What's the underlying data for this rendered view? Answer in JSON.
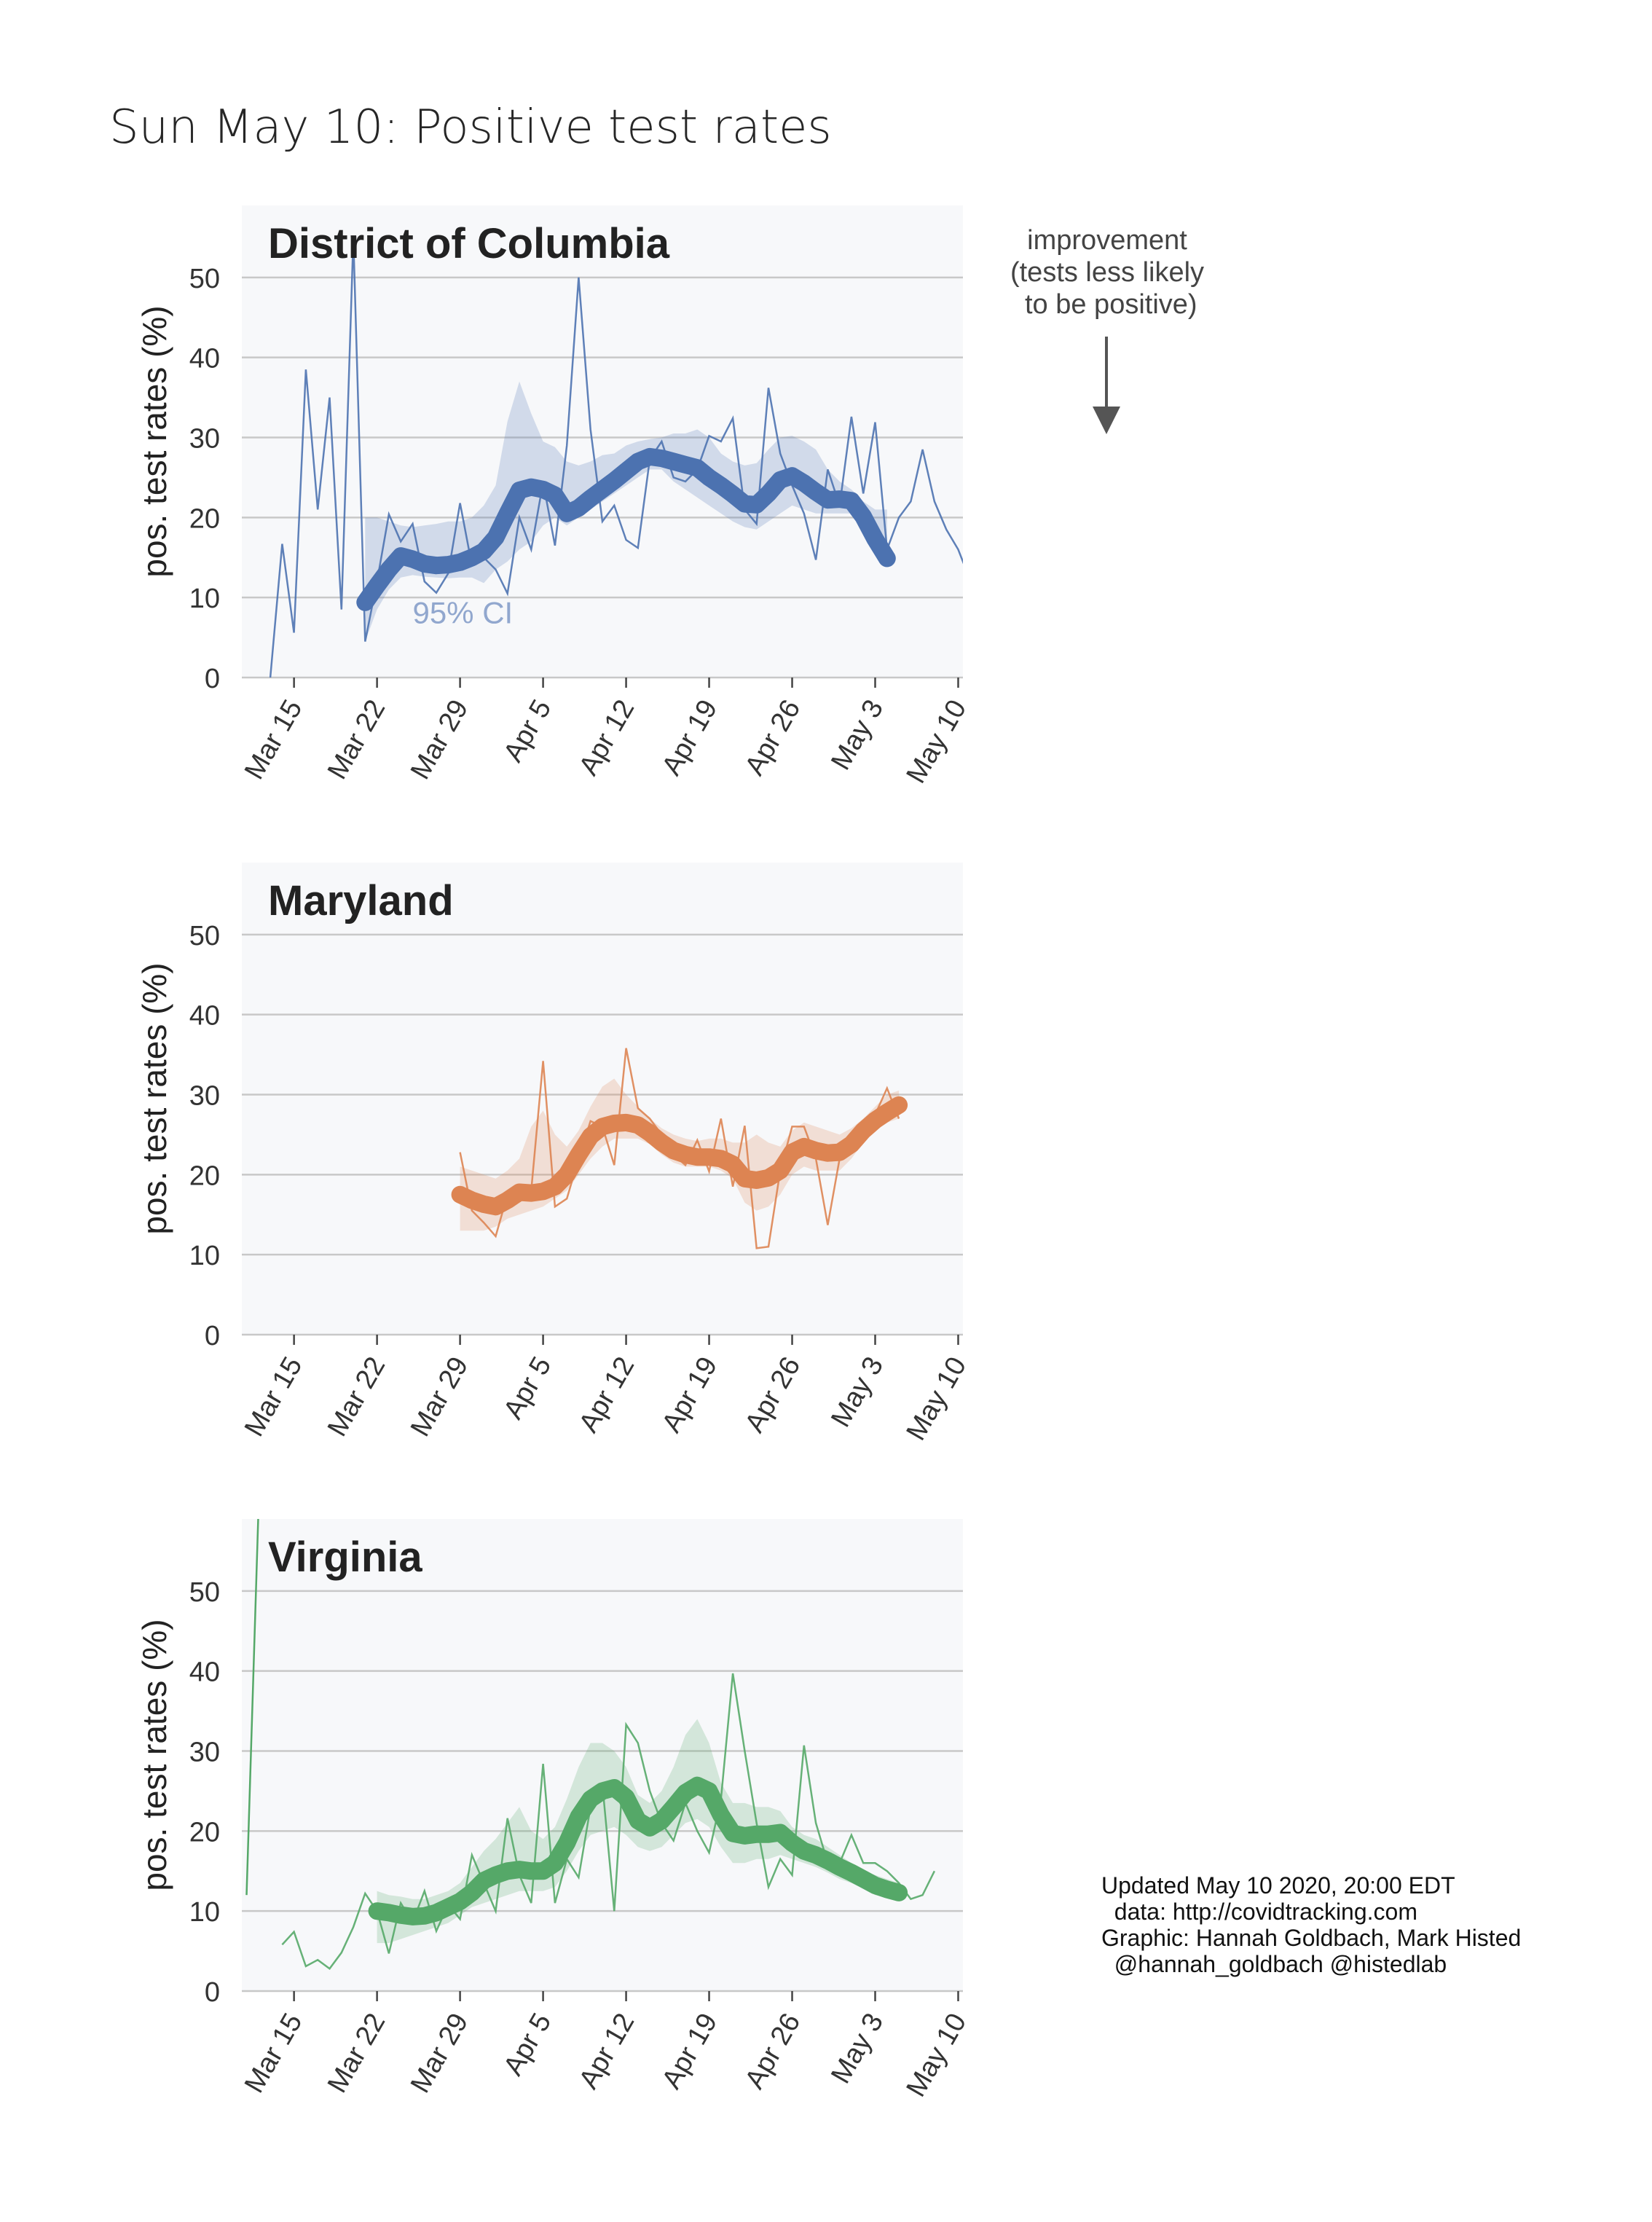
{
  "title": "Sun May 10: Positive test rates",
  "annotation": {
    "improvement_text": "improvement\n(tests less likely\n to be positive)"
  },
  "credits": {
    "text": "Updated May 10 2020, 20:00 EDT\n  data: http://covidtracking.com\nGraphic: Hannah Goldbach, Mark Histed\n  @hannah_goldbach @histedlab"
  },
  "chart_data": [
    {
      "type": "line",
      "title": "District of Columbia",
      "xlabel": "",
      "ylabel": "pos. test rates (%)",
      "ylim": [
        0,
        59
      ],
      "xlim": [
        "2020-03-11",
        "2020-05-10"
      ],
      "x_ticks": [
        "Mar 15",
        "Mar 22",
        "Mar 29",
        "Apr 5",
        "Apr 12",
        "Apr 19",
        "Apr 26",
        "May 3",
        "May 10"
      ],
      "y_ticks": [
        0,
        10,
        20,
        30,
        40,
        50
      ],
      "grid": true,
      "color": "#4c72b0",
      "ci_label": "95% CI",
      "raw": {
        "start": "2020-03-13",
        "values": [
          0,
          16.7,
          5.6,
          38.5,
          21,
          35,
          8.5,
          55,
          4.5,
          12,
          20.4,
          17,
          19.2,
          12,
          10.6,
          13,
          21.8,
          14,
          15,
          13.5,
          10.5,
          20,
          16,
          24.4,
          16.5,
          29,
          50,
          31,
          19.5,
          21.5,
          17.2,
          16.2,
          27.3,
          29.5,
          25,
          24.5,
          26,
          30.2,
          29.5,
          32.4,
          21,
          19.2,
          36.2,
          28,
          24,
          20.5,
          14.7,
          26,
          21.5,
          32.6,
          23,
          31.9,
          16,
          20,
          22,
          28.5,
          22,
          18.5,
          16,
          12.2
        ]
      },
      "smoothed": {
        "start": "2020-03-21",
        "values": [
          9.4,
          11.5,
          13.5,
          15.2,
          14.8,
          14.2,
          14,
          14.1,
          14.4,
          15,
          15.8,
          17.5,
          20.5,
          23.4,
          23.8,
          23.5,
          22.8,
          20.5,
          21.2,
          22.4,
          23.5,
          24.6,
          25.8,
          27,
          27.6,
          27.4,
          27,
          26.6,
          26.2,
          25,
          24,
          22.9,
          21.7,
          21.6,
          23,
          24.7,
          25.2,
          24.3,
          23.2,
          22.2,
          22.3,
          22.1,
          20.1,
          17.3,
          14.9
        ]
      },
      "ci_lower": [
        4.5,
        8.5,
        11,
        12.5,
        12.8,
        12.6,
        12.5,
        12.4,
        12.5,
        12.5,
        11.8,
        13.5,
        14.5,
        16,
        17,
        19,
        20,
        19,
        20,
        21,
        22,
        23,
        24,
        25,
        26,
        26,
        24.5,
        23.5,
        22.5,
        21.5,
        20.5,
        19.5,
        18.8,
        18.5,
        19.5,
        20.5,
        21.5,
        21,
        20.5,
        20.5,
        20.5,
        20.5,
        18.5,
        16.5,
        14
      ],
      "ci_upper": [
        20,
        20,
        19.5,
        19,
        18.8,
        19,
        19.2,
        19.5,
        19.5,
        20,
        21.5,
        24,
        32,
        37,
        33,
        29.5,
        28.8,
        27,
        26.5,
        27,
        27.8,
        28,
        29,
        29.5,
        29.8,
        30,
        30.5,
        30.5,
        31,
        30,
        28,
        27,
        26.5,
        26.8,
        28.5,
        30,
        30.2,
        29.5,
        28.5,
        26,
        24.5,
        23.5,
        22,
        21,
        21
      ]
    },
    {
      "type": "line",
      "title": "Maryland",
      "xlabel": "",
      "ylabel": "pos. test rates (%)",
      "ylim": [
        0,
        59
      ],
      "xlim": [
        "2020-03-11",
        "2020-05-10"
      ],
      "x_ticks": [
        "Mar 15",
        "Mar 22",
        "Mar 29",
        "Apr 5",
        "Apr 12",
        "Apr 19",
        "Apr 26",
        "May 3",
        "May 10"
      ],
      "y_ticks": [
        0,
        10,
        20,
        30,
        40,
        50
      ],
      "grid": true,
      "color": "#dd8452",
      "raw": {
        "start": "2020-03-29",
        "values": [
          22.8,
          15.5,
          14,
          12.3,
          17.5,
          18.2,
          18,
          34.2,
          16,
          17,
          22,
          26.7,
          26,
          21.2,
          35.8,
          28.3,
          27,
          25,
          22.5,
          21.2,
          24.3,
          20.4,
          27,
          18.5,
          26.1,
          10.8,
          11,
          20.5,
          26,
          26,
          22,
          13.7,
          22,
          25.2,
          26,
          27.5,
          30.8,
          27
        ]
      },
      "smoothed": {
        "start": "2020-03-29",
        "values": [
          17.5,
          16.8,
          16.3,
          16,
          16.8,
          17.8,
          17.7,
          17.9,
          18.5,
          20,
          22.5,
          24.8,
          26,
          26.4,
          26.5,
          26.2,
          25.2,
          24,
          23,
          22.5,
          22.2,
          22.2,
          22,
          21.3,
          19.5,
          19.3,
          19.6,
          20.5,
          22.8,
          23.5,
          23,
          22.7,
          22.8,
          23.8,
          25.5,
          26.8,
          27.8,
          28.7
        ]
      },
      "ci_lower": [
        13,
        13,
        13,
        13.5,
        14.5,
        15,
        15.5,
        16,
        17,
        18,
        20,
        22,
        23.5,
        24.5,
        24.5,
        24.5,
        23.8,
        22.5,
        21.5,
        21,
        21,
        21,
        20.5,
        19.5,
        16.5,
        15.5,
        16,
        17.5,
        20,
        21,
        20.5,
        20.5,
        20.5,
        22,
        24,
        25.5,
        26.5,
        27
      ],
      "ci_upper": [
        21,
        20.5,
        20,
        19.5,
        20.5,
        22,
        26,
        28,
        25,
        23.5,
        25.5,
        28.5,
        31,
        32,
        30,
        28.5,
        27,
        25.8,
        25,
        24.5,
        24.2,
        24.5,
        24.5,
        24,
        24,
        25,
        24,
        23.5,
        25.5,
        26.5,
        26,
        25.5,
        25,
        25.8,
        27,
        28.5,
        30,
        30.5
      ]
    },
    {
      "type": "line",
      "title": "Virginia",
      "xlabel": "",
      "ylabel": "pos. test rates (%)",
      "ylim": [
        0,
        59
      ],
      "xlim": [
        "2020-03-11",
        "2020-05-10"
      ],
      "x_ticks": [
        "Mar 15",
        "Mar 22",
        "Mar 29",
        "Apr 5",
        "Apr 12",
        "Apr 19",
        "Apr 26",
        "May 3",
        "May 10"
      ],
      "y_ticks": [
        0,
        10,
        20,
        30,
        40,
        50
      ],
      "grid": true,
      "color": "#55a868",
      "raw_early": {
        "start": "2020-03-11",
        "values": [
          12,
          60
        ]
      },
      "raw": {
        "start": "2020-03-14",
        "values": [
          5.8,
          7.4,
          3.1,
          3.9,
          2.8,
          4.8,
          8,
          12.2,
          10,
          4.7,
          11,
          8.6,
          12.5,
          7.5,
          10.8,
          9,
          17,
          13.5,
          10,
          21.6,
          14.5,
          11,
          28.4,
          11,
          16.5,
          14.2,
          23,
          25.8,
          10,
          33.3,
          31,
          25,
          21,
          18.8,
          23.5,
          20,
          17.3,
          24,
          39.7,
          30,
          21,
          13,
          16.5,
          14.5,
          30.7,
          21,
          16,
          16,
          19.5,
          16,
          16,
          15,
          13.5,
          11.5,
          12,
          15
        ]
      },
      "smoothed": {
        "start": "2020-03-22",
        "values": [
          10,
          9.8,
          9.5,
          9.3,
          9.4,
          9.8,
          10.5,
          11.2,
          12.3,
          13.8,
          14.5,
          15,
          15.2,
          15,
          15,
          16,
          18.5,
          21.8,
          24,
          25,
          25.4,
          24.2,
          21.3,
          20.4,
          21.3,
          23,
          24.8,
          25.7,
          25,
          22,
          19.7,
          19.4,
          19.6,
          19.6,
          19.8,
          18.5,
          17.5,
          17,
          16.3,
          15.5,
          14.8,
          14,
          13.2,
          12.7,
          12.3
        ]
      },
      "ci_lower": [
        6,
        6,
        6.5,
        7,
        7.5,
        8,
        8.5,
        9.5,
        10.5,
        11,
        11.5,
        12,
        12.5,
        12.5,
        12.5,
        13,
        15,
        17.5,
        19.5,
        20,
        20.5,
        19.5,
        18,
        17.5,
        18,
        19.5,
        21,
        21.5,
        20.5,
        18,
        16,
        16,
        16.5,
        16.5,
        17,
        16.5,
        16,
        15.5,
        14.8,
        14,
        13.5,
        12.8,
        12,
        11.8,
        11.5
      ],
      "ci_upper": [
        12.5,
        12,
        11.8,
        11.5,
        11.5,
        12,
        12.5,
        13.5,
        15.5,
        17.5,
        19,
        21,
        23,
        20,
        19,
        20.5,
        24,
        28,
        31,
        31,
        30,
        28,
        24.5,
        23.5,
        25,
        28,
        32,
        34,
        31,
        26,
        23.5,
        23.5,
        23,
        23,
        22.5,
        20.5,
        19.5,
        19,
        18,
        17,
        16,
        15,
        14.5,
        14,
        13.5
      ]
    }
  ]
}
